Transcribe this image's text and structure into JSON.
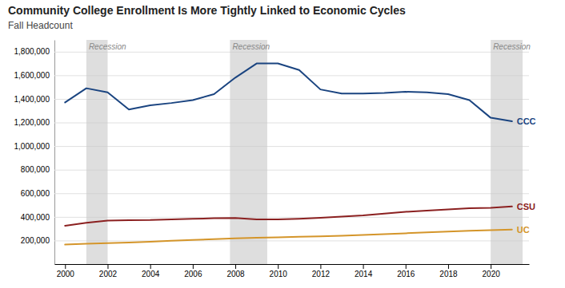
{
  "chart_data": {
    "type": "line",
    "title": "Community College Enrollment Is More Tightly Linked to Economic Cycles",
    "subtitle": "Fall Headcount",
    "x": [
      2000,
      2001,
      2002,
      2003,
      2004,
      2005,
      2006,
      2007,
      2008,
      2009,
      2010,
      2011,
      2012,
      2013,
      2014,
      2015,
      2016,
      2017,
      2018,
      2019,
      2020,
      2021
    ],
    "series": [
      {
        "name": "CCC",
        "color": "#1a4480",
        "values": [
          1370000,
          1490000,
          1455000,
          1310000,
          1345000,
          1365000,
          1390000,
          1440000,
          1580000,
          1700000,
          1700000,
          1645000,
          1480000,
          1445000,
          1445000,
          1450000,
          1460000,
          1455000,
          1440000,
          1390000,
          1240000,
          1210000
        ]
      },
      {
        "name": "CSU",
        "color": "#8b2020",
        "values": [
          325000,
          350000,
          368000,
          372000,
          373000,
          378000,
          383000,
          388000,
          390000,
          378000,
          378000,
          384000,
          393000,
          403000,
          413000,
          428000,
          443000,
          453000,
          463000,
          473000,
          476000,
          488000
        ]
      },
      {
        "name": "UC",
        "color": "#d4952a",
        "values": [
          165000,
          173000,
          178000,
          183000,
          190000,
          197000,
          204000,
          211000,
          218000,
          223000,
          227000,
          231000,
          235000,
          240000,
          247000,
          254000,
          261000,
          268000,
          276000,
          282000,
          287000,
          292000
        ]
      }
    ],
    "bands": [
      {
        "x": [
          2001.0,
          2002.0
        ],
        "label": "Recession",
        "color": "#c8c8c8"
      },
      {
        "x": [
          2007.75,
          2009.5
        ],
        "label": "Recession",
        "color": "#c8c8c8"
      },
      {
        "x": [
          2020.0,
          2021.5
        ],
        "label": "Recession",
        "color": "#c8c8c8"
      }
    ],
    "xlim": [
      1999.5,
      2021.8
    ],
    "xticks": [
      2000,
      2002,
      2004,
      2006,
      2008,
      2010,
      2012,
      2014,
      2016,
      2018,
      2020
    ],
    "ylim": [
      0,
      1900000
    ],
    "yticks": [
      {
        "value": 200000,
        "label": "200,000"
      },
      {
        "value": 400000,
        "label": "400,000"
      },
      {
        "value": 600000,
        "label": "600,000"
      },
      {
        "value": 800000,
        "label": "800,000"
      },
      {
        "value": 1000000,
        "label": "1,000,000"
      },
      {
        "value": 1200000,
        "label": "1,200,000"
      },
      {
        "value": 1400000,
        "label": "1,400,000"
      },
      {
        "value": 1600000,
        "label": "1,600,000"
      },
      {
        "value": 1800000,
        "label": "1,800,000"
      }
    ],
    "grid": true
  }
}
